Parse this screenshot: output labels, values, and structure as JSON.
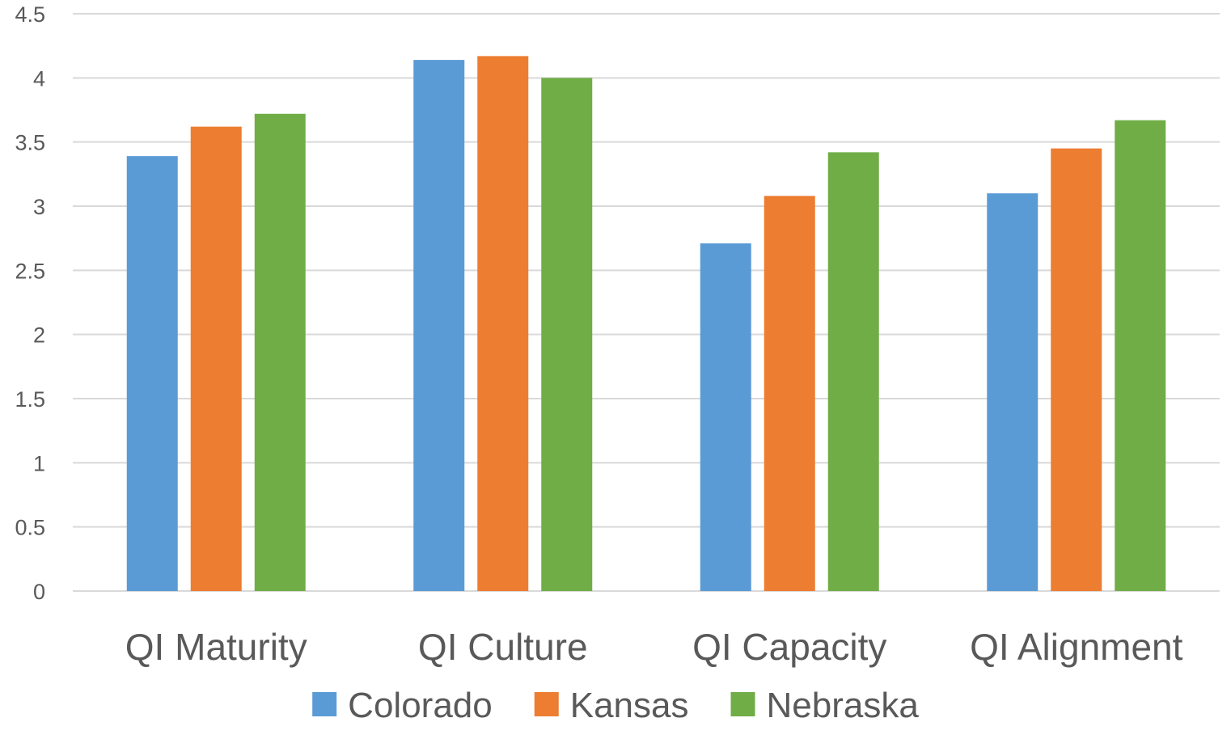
{
  "chart_data": {
    "type": "bar",
    "categories": [
      "QI Maturity",
      "QI Culture",
      "QI Capacity",
      "QI Alignment"
    ],
    "series": [
      {
        "name": "Colorado",
        "color": "#5b9bd5",
        "values": [
          3.39,
          4.14,
          2.71,
          3.1
        ]
      },
      {
        "name": "Kansas",
        "color": "#ed7d31",
        "values": [
          3.62,
          4.17,
          3.08,
          3.45
        ]
      },
      {
        "name": "Nebraska",
        "color": "#70ad47",
        "values": [
          3.72,
          4.0,
          3.42,
          3.67
        ]
      }
    ],
    "yticks": [
      "0",
      "0.5",
      "1",
      "1.5",
      "2",
      "2.5",
      "3",
      "3.5",
      "4",
      "4.5"
    ],
    "ylim": [
      0,
      4.5
    ],
    "grid": true,
    "legend_position": "bottom"
  }
}
